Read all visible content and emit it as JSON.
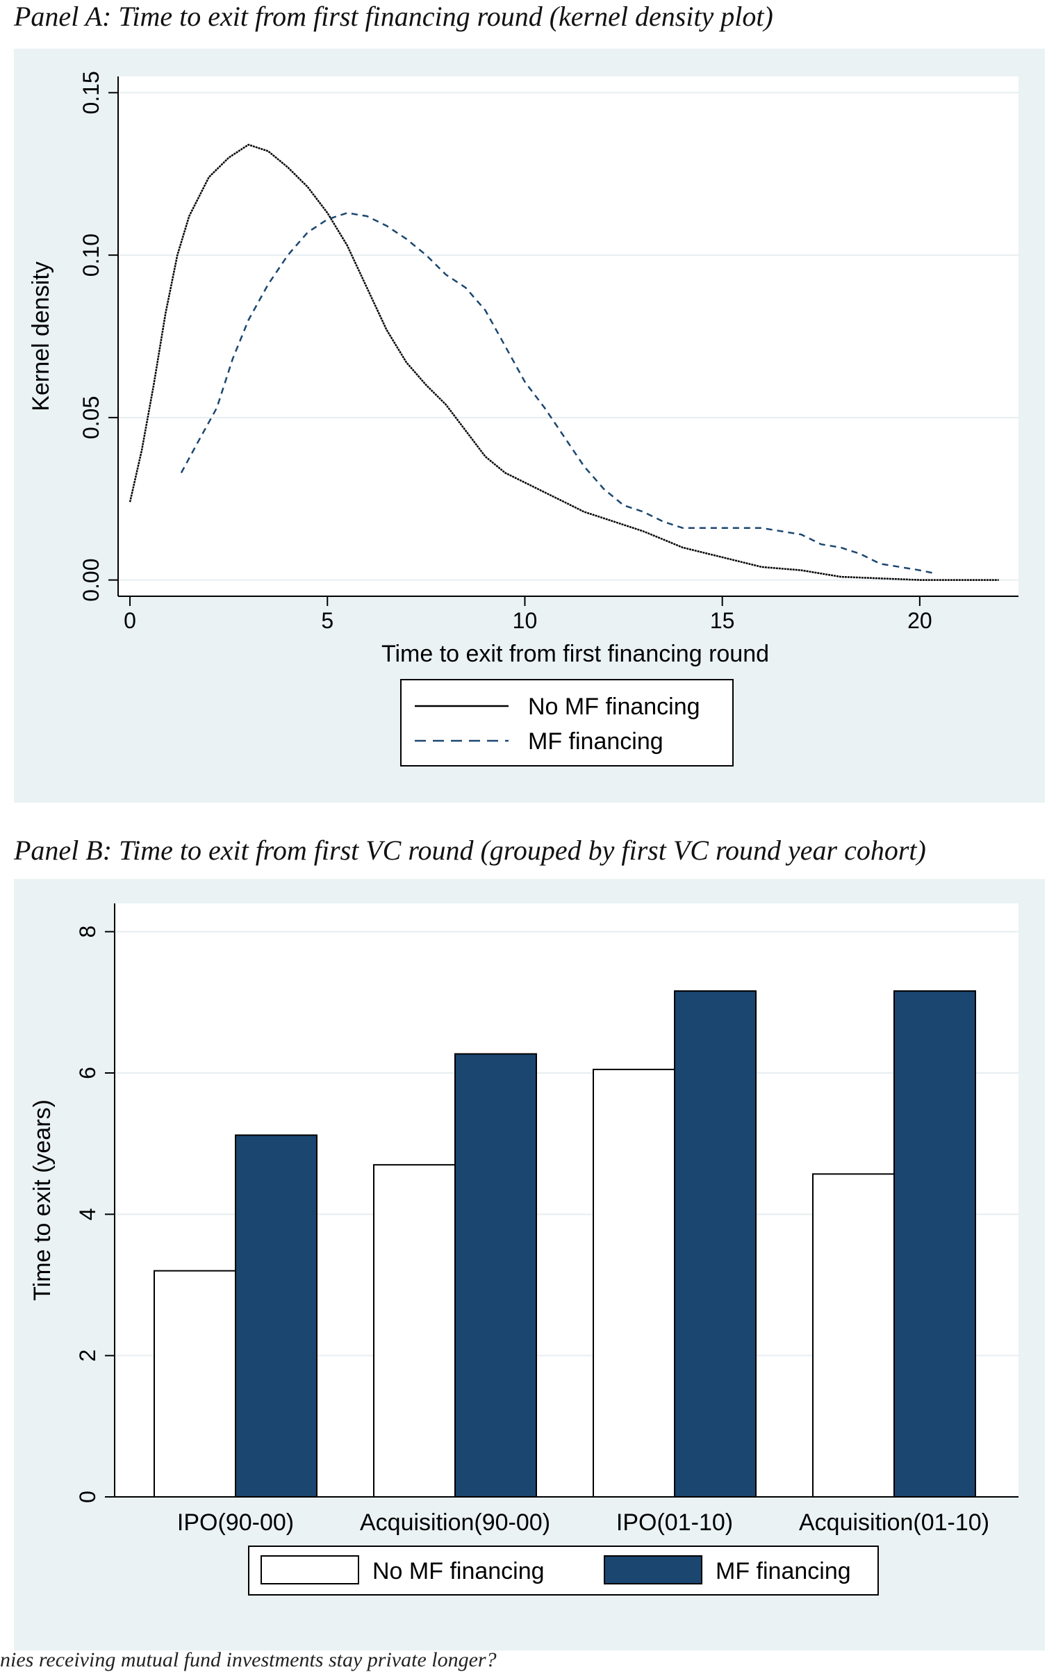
{
  "panel_a": {
    "title": "Panel A: Time to exit from first financing round (kernel density plot)"
  },
  "panel_b": {
    "title": "Panel B: Time to exit from first VC round (grouped by first VC round year cohort)"
  },
  "footer_text": "nies receiving mutual fund investments stay private longer?",
  "colors": {
    "plot_region_bg": "#eaf2f3",
    "mf_bar": "#1b4670",
    "mf_line": "#1b4670",
    "no_mf_bar": "#ffffff",
    "no_mf_line": "#000000",
    "grid": "#e6eef0"
  },
  "chart_data": [
    {
      "type": "line",
      "xlabel": "Time to exit from first financing round",
      "ylabel": "Kernel density",
      "xlim": [
        -0.3,
        22.5
      ],
      "ylim": [
        -0.005,
        0.155
      ],
      "xticks": [
        0,
        5,
        10,
        15,
        20
      ],
      "xtick_labels": [
        "0",
        "5",
        "10",
        "15",
        "20"
      ],
      "yticks": [
        0,
        0.05,
        0.1,
        0.15
      ],
      "ytick_labels": [
        "0.00",
        "0.05",
        "0.10",
        "0.15"
      ],
      "grid": true,
      "legend_position": "bottom",
      "series": [
        {
          "name": "No MF financing",
          "style": "solid",
          "points": [
            [
              0,
              0.024
            ],
            [
              0.3,
              0.04
            ],
            [
              0.6,
              0.06
            ],
            [
              0.9,
              0.082
            ],
            [
              1.2,
              0.1
            ],
            [
              1.5,
              0.112
            ],
            [
              2,
              0.124
            ],
            [
              2.5,
              0.13
            ],
            [
              3.0,
              0.134
            ],
            [
              3.5,
              0.132
            ],
            [
              4,
              0.127
            ],
            [
              4.5,
              0.121
            ],
            [
              5,
              0.113
            ],
            [
              5.5,
              0.103
            ],
            [
              6,
              0.09
            ],
            [
              6.5,
              0.077
            ],
            [
              7,
              0.067
            ],
            [
              7.5,
              0.06
            ],
            [
              8,
              0.054
            ],
            [
              8.5,
              0.046
            ],
            [
              9,
              0.038
            ],
            [
              9.5,
              0.033
            ],
            [
              10,
              0.03
            ],
            [
              10.5,
              0.027
            ],
            [
              11,
              0.024
            ],
            [
              11.5,
              0.021
            ],
            [
              12,
              0.019
            ],
            [
              13,
              0.015
            ],
            [
              14,
              0.01
            ],
            [
              15,
              0.007
            ],
            [
              16,
              0.004
            ],
            [
              17,
              0.003
            ],
            [
              18,
              0.001
            ],
            [
              19,
              0.0005
            ],
            [
              20,
              0.0
            ],
            [
              21,
              0.0
            ],
            [
              22,
              0.0
            ]
          ]
        },
        {
          "name": "MF financing",
          "style": "dash",
          "points": [
            [
              1.3,
              0.033
            ],
            [
              1.7,
              0.042
            ],
            [
              2.2,
              0.053
            ],
            [
              2.6,
              0.068
            ],
            [
              3.0,
              0.08
            ],
            [
              3.5,
              0.091
            ],
            [
              4,
              0.1
            ],
            [
              4.5,
              0.107
            ],
            [
              5,
              0.111
            ],
            [
              5.5,
              0.113
            ],
            [
              6,
              0.112
            ],
            [
              6.5,
              0.109
            ],
            [
              7,
              0.105
            ],
            [
              7.5,
              0.1
            ],
            [
              8,
              0.094
            ],
            [
              8.5,
              0.09
            ],
            [
              9,
              0.083
            ],
            [
              9.5,
              0.072
            ],
            [
              10,
              0.061
            ],
            [
              10.5,
              0.053
            ],
            [
              11,
              0.044
            ],
            [
              11.5,
              0.035
            ],
            [
              12,
              0.028
            ],
            [
              12.5,
              0.023
            ],
            [
              13,
              0.021
            ],
            [
              13.5,
              0.018
            ],
            [
              14,
              0.016
            ],
            [
              15,
              0.016
            ],
            [
              16,
              0.016
            ],
            [
              17,
              0.014
            ],
            [
              17.5,
              0.011
            ],
            [
              18,
              0.01
            ],
            [
              18.5,
              0.008
            ],
            [
              19,
              0.005
            ],
            [
              19.5,
              0.004
            ],
            [
              20,
              0.003
            ],
            [
              20.4,
              0.002
            ]
          ]
        }
      ]
    },
    {
      "type": "bar",
      "ylabel": "Time to exit (years)",
      "xlabel": "",
      "ylim": [
        0,
        8.4
      ],
      "yticks": [
        0,
        2,
        4,
        6,
        8
      ],
      "ytick_labels": [
        "0",
        "2",
        "4",
        "6",
        "8"
      ],
      "grid": true,
      "legend_position": "bottom",
      "categories": [
        "IPO(90-00)",
        "Acquisition(90-00)",
        "IPO(01-10)",
        "Acquisition(01-10)"
      ],
      "series": [
        {
          "name": "No MF financing",
          "values": [
            3.2,
            4.7,
            6.05,
            4.57
          ]
        },
        {
          "name": "MF financing",
          "values": [
            5.12,
            6.27,
            7.16,
            7.16
          ]
        }
      ]
    }
  ]
}
